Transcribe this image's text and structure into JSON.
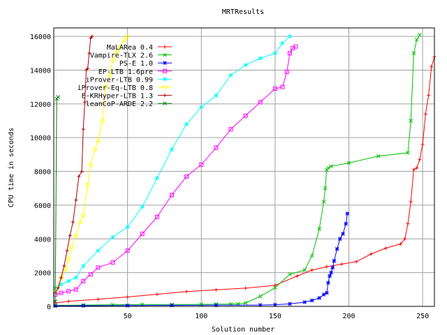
{
  "chart_data": {
    "type": "line",
    "title": "MRTResults",
    "xlabel": "Solution number",
    "ylabel": "CPU time in seconds",
    "xlim": [
      0,
      258
    ],
    "ylim": [
      0,
      16500
    ],
    "x_ticks": [
      50,
      100,
      150,
      200,
      250
    ],
    "y_ticks": [
      0,
      2000,
      4000,
      6000,
      8000,
      10000,
      12000,
      14000,
      16000
    ],
    "grid": true,
    "legend_position": "top-left",
    "series": [
      {
        "name": "MaLARea 0.4",
        "color": "#ff0000",
        "marker": "+",
        "x": [
          1,
          10,
          30,
          50,
          70,
          90,
          110,
          130,
          150,
          165,
          175,
          185,
          195,
          205,
          215,
          225,
          235,
          238,
          240,
          242,
          244,
          246,
          248,
          250,
          252,
          254,
          256,
          258
        ],
        "y": [
          200,
          300,
          420,
          560,
          720,
          880,
          980,
          1080,
          1250,
          1800,
          2150,
          2350,
          2500,
          2650,
          3100,
          3450,
          3700,
          4000,
          4900,
          6200,
          8100,
          8200,
          8700,
          9600,
          11400,
          12500,
          14200,
          14800
        ]
      },
      {
        "name": "Vampire-TLX 2.6",
        "color": "#00c000",
        "marker": "x",
        "x": [
          1,
          20,
          40,
          60,
          80,
          100,
          110,
          120,
          125,
          130,
          140,
          150,
          160,
          170,
          175,
          180,
          183,
          184,
          185,
          186,
          188,
          200,
          220,
          240,
          242,
          244,
          246,
          248
        ],
        "y": [
          60,
          80,
          100,
          110,
          110,
          120,
          130,
          140,
          150,
          200,
          600,
          1100,
          1900,
          2150,
          3000,
          4600,
          6200,
          7000,
          8100,
          8200,
          8300,
          8500,
          8900,
          9100,
          11000,
          15000,
          15800,
          16100
        ]
      },
      {
        "name": "PS-E 1.0",
        "color": "#0000ff",
        "marker": "*",
        "x": [
          1,
          20,
          50,
          80,
          110,
          140,
          150,
          160,
          170,
          175,
          180,
          183,
          185,
          186,
          187,
          188,
          189,
          190,
          192,
          194,
          196,
          198,
          199
        ],
        "y": [
          30,
          40,
          50,
          60,
          70,
          80,
          100,
          150,
          250,
          350,
          500,
          700,
          800,
          1400,
          1800,
          2000,
          2300,
          2700,
          3400,
          4000,
          4300,
          4900,
          5500
        ]
      },
      {
        "name": "EP-LTB 1.6pre",
        "color": "#ff00ff",
        "marker": "sq",
        "x": [
          1,
          5,
          10,
          15,
          20,
          25,
          30,
          40,
          50,
          60,
          70,
          80,
          90,
          100,
          110,
          120,
          130,
          140,
          150,
          155,
          158,
          160,
          162,
          164
        ],
        "y": [
          700,
          800,
          900,
          1000,
          1500,
          1900,
          2300,
          2600,
          3300,
          4300,
          5300,
          6600,
          7700,
          8400,
          9400,
          10500,
          11300,
          12100,
          12900,
          13000,
          13900,
          15000,
          15300,
          15400
        ]
      },
      {
        "name": "iProver-LTB 0.99",
        "color": "#00ffff",
        "marker": "*",
        "x": [
          1,
          5,
          10,
          15,
          20,
          30,
          40,
          50,
          60,
          70,
          80,
          90,
          100,
          110,
          120,
          130,
          140,
          150,
          155,
          160
        ],
        "y": [
          1100,
          1300,
          1500,
          1700,
          2400,
          3300,
          4100,
          4700,
          5900,
          7600,
          9300,
          10800,
          11800,
          12500,
          13700,
          14300,
          14700,
          15000,
          15600,
          16000
        ]
      },
      {
        "name": "iProver-Eq-LTB 0.8",
        "color": "#ffff00",
        "marker": "o",
        "x": [
          1,
          5,
          8,
          10,
          12,
          15,
          18,
          20,
          23,
          25,
          28,
          30,
          33,
          35,
          38,
          40,
          43,
          45,
          48,
          50
        ],
        "y": [
          900,
          1700,
          2200,
          2800,
          3500,
          4200,
          5000,
          5400,
          7200,
          8400,
          9300,
          9800,
          11000,
          13000,
          13700,
          14600,
          15100,
          15400,
          15800,
          16000
        ]
      },
      {
        "name": "E-KRHyper-LTB 1.3",
        "color": "#aa0000",
        "marker": "+",
        "x": [
          1,
          3,
          5,
          7,
          9,
          11,
          13,
          15,
          17,
          19,
          20,
          21,
          22,
          23,
          24,
          25,
          26
        ],
        "y": [
          800,
          1100,
          1700,
          2400,
          3300,
          4200,
          5000,
          6300,
          7700,
          8000,
          10500,
          12100,
          14000,
          14100,
          15000,
          15900,
          16000
        ]
      },
      {
        "name": "leanCoP-ARDE 2.2",
        "color": "#008000",
        "marker": "x",
        "x": [
          1,
          2,
          3
        ],
        "y": [
          300,
          12300,
          12400
        ]
      }
    ]
  }
}
